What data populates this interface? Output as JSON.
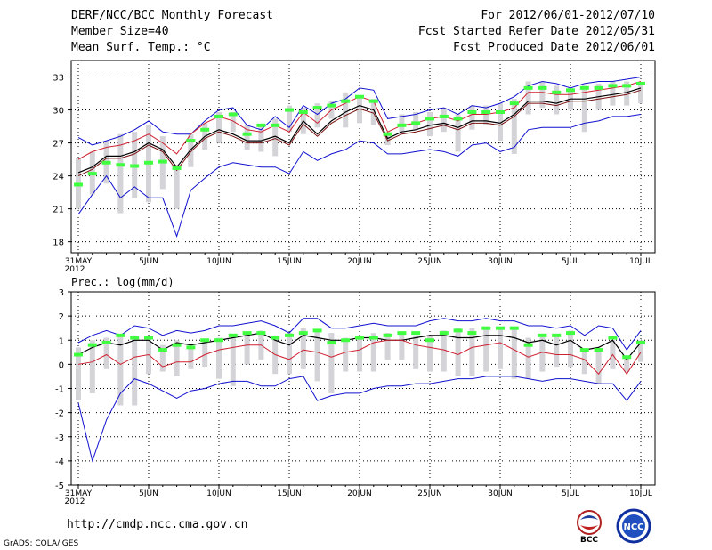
{
  "header": {
    "title": "DERF/NCC/BCC Monthly Forecast",
    "member_size": "Member Size=40",
    "variable": "Mean Surf. Temp.: °C",
    "forecast_period": "For 2012/06/01-2012/07/10",
    "refer_date": "Fcst Started Refer Date 2012/05/31",
    "produced_date": "Fcst Produced Date 2012/06/01"
  },
  "footer": {
    "url": "http://cmdp.ncc.cma.gov.cn",
    "grads": "GrADS: COLA/IGES",
    "logo_left": "BCC",
    "logo_right": "NCC"
  },
  "colors": {
    "box": "#d3d3d8",
    "ensemble_mean": "#40ff40",
    "envelope": "#1010d0",
    "climatology": "#000000",
    "percentile": "#d02030",
    "grid": "#000000"
  },
  "chart_data": [
    {
      "type": "line",
      "title": "Mean Surf. Temp.: °C",
      "x": [
        "31MAY 2012",
        "1",
        "2",
        "3",
        "4",
        "5JUN",
        "6",
        "7",
        "8",
        "9",
        "10JUN",
        "11",
        "12",
        "13",
        "14",
        "15JUN",
        "16",
        "17",
        "18",
        "19",
        "20JUN",
        "21",
        "22",
        "23",
        "24",
        "25JUN",
        "26",
        "27",
        "28",
        "29",
        "30JUN",
        "1",
        "2",
        "3",
        "4",
        "5JUL",
        "6",
        "7",
        "8",
        "9",
        "10JUL"
      ],
      "tick_labels": [
        {
          "day": 0,
          "label": "31MAY",
          "sub": "2012"
        },
        {
          "day": 5,
          "label": "5JUN"
        },
        {
          "day": 10,
          "label": "10JUN"
        },
        {
          "day": 15,
          "label": "15JUN"
        },
        {
          "day": 20,
          "label": "20JUN"
        },
        {
          "day": 25,
          "label": "25JUN"
        },
        {
          "day": 30,
          "label": "30JUN"
        },
        {
          "day": 35,
          "label": "5JUL"
        },
        {
          "day": 40,
          "label": "10JUL"
        }
      ],
      "ylim": [
        17,
        34.5
      ],
      "yticks": [
        18,
        21,
        24,
        27,
        30,
        33
      ],
      "grid": true,
      "series": [
        {
          "name": "Ensemble max (blue)",
          "values": [
            27.5,
            26.8,
            27.2,
            27.6,
            28.2,
            29.0,
            28.0,
            27.8,
            27.8,
            29.0,
            30.0,
            30.2,
            28.6,
            28.2,
            29.4,
            28.4,
            30.4,
            29.6,
            30.6,
            31.0,
            32.0,
            31.8,
            29.2,
            29.4,
            29.6,
            30.0,
            30.2,
            29.6,
            30.4,
            30.2,
            30.6,
            31.2,
            32.2,
            32.6,
            32.4,
            32.0,
            32.4,
            32.6,
            32.6,
            32.8,
            33.0
          ]
        },
        {
          "name": "Upper percentile (red)",
          "values": [
            25.5,
            26.2,
            26.6,
            26.8,
            27.2,
            27.8,
            27.0,
            26.0,
            27.8,
            28.8,
            29.4,
            29.0,
            28.2,
            28.0,
            28.6,
            28.0,
            29.8,
            28.8,
            30.0,
            30.6,
            31.2,
            30.8,
            28.0,
            28.6,
            28.8,
            29.2,
            29.4,
            29.0,
            29.6,
            29.6,
            29.8,
            30.2,
            31.6,
            31.6,
            31.4,
            31.4,
            31.6,
            31.8,
            32.0,
            32.2,
            32.6
          ]
        },
        {
          "name": "Climatology (black)",
          "values": [
            24.3,
            24.8,
            25.8,
            25.8,
            26.2,
            27.0,
            26.4,
            24.8,
            26.4,
            27.6,
            28.2,
            27.8,
            27.2,
            27.2,
            27.6,
            27.0,
            29.0,
            27.8,
            29.0,
            29.8,
            30.4,
            30.0,
            27.4,
            28.0,
            28.2,
            28.6,
            28.8,
            28.4,
            29.0,
            29.0,
            28.8,
            29.6,
            30.8,
            30.8,
            30.6,
            31.0,
            31.0,
            31.2,
            31.4,
            31.6,
            32.0
          ]
        },
        {
          "name": "Lower percentile (dark red)",
          "values": [
            24.0,
            24.6,
            25.6,
            25.6,
            26.0,
            26.8,
            26.2,
            24.5,
            26.2,
            27.4,
            28.0,
            27.6,
            27.0,
            27.0,
            27.4,
            26.8,
            28.7,
            27.6,
            28.8,
            29.5,
            30.1,
            29.7,
            27.2,
            27.8,
            28.0,
            28.3,
            28.6,
            28.2,
            28.8,
            28.8,
            28.6,
            29.4,
            30.6,
            30.6,
            30.4,
            30.8,
            30.8,
            31.0,
            31.2,
            31.4,
            31.8
          ]
        },
        {
          "name": "Ensemble min (blue)",
          "values": [
            20.5,
            22.3,
            24.0,
            22.0,
            23.0,
            22.0,
            22.0,
            18.5,
            22.7,
            23.8,
            24.8,
            25.2,
            25.0,
            24.8,
            24.8,
            24.2,
            26.2,
            25.4,
            26.0,
            26.4,
            27.2,
            27.0,
            26.0,
            26.0,
            26.2,
            26.4,
            26.2,
            25.8,
            26.8,
            27.0,
            26.2,
            26.6,
            28.2,
            28.4,
            28.4,
            28.4,
            28.8,
            29.0,
            29.4,
            29.4,
            29.6
          ]
        },
        {
          "name": "Ensemble mean (green)",
          "values": [
            23.2,
            24.2,
            25.2,
            25.0,
            24.9,
            25.2,
            25.3,
            24.7,
            27.2,
            28.2,
            29.4,
            29.6,
            27.8,
            28.6,
            28.6,
            30.0,
            29.8,
            30.2,
            30.4,
            30.8,
            31.2,
            30.8,
            27.8,
            28.6,
            28.8,
            29.2,
            29.4,
            29.2,
            29.8,
            29.8,
            29.8,
            30.6,
            32.0,
            32.0,
            31.6,
            31.8,
            32.0,
            32.0,
            32.2,
            32.2,
            32.4
          ]
        }
      ],
      "box_ranges": [
        [
          21.0,
          25.6
        ],
        [
          22.3,
          26.2
        ],
        [
          23.3,
          27.2
        ],
        [
          20.6,
          27.8
        ],
        [
          22.0,
          28.0
        ],
        [
          21.6,
          28.6
        ],
        [
          22.8,
          27.6
        ],
        [
          21.0,
          25.0
        ],
        [
          24.8,
          27.8
        ],
        [
          26.4,
          28.8
        ],
        [
          27.0,
          29.8
        ],
        [
          28.0,
          29.8
        ],
        [
          26.4,
          28.6
        ],
        [
          26.2,
          28.6
        ],
        [
          25.8,
          29.2
        ],
        [
          28.0,
          30.4
        ],
        [
          27.8,
          30.2
        ],
        [
          28.4,
          30.6
        ],
        [
          29.2,
          30.8
        ],
        [
          28.4,
          31.6
        ],
        [
          28.8,
          31.2
        ],
        [
          28.6,
          31.0
        ],
        [
          26.8,
          28.0
        ],
        [
          28.0,
          29.6
        ],
        [
          28.2,
          29.8
        ],
        [
          27.6,
          29.8
        ],
        [
          28.0,
          30.2
        ],
        [
          26.2,
          29.6
        ],
        [
          28.2,
          30.4
        ],
        [
          28.6,
          30.4
        ],
        [
          27.2,
          30.6
        ],
        [
          26.0,
          31.0
        ],
        [
          29.6,
          32.6
        ],
        [
          30.2,
          32.6
        ],
        [
          29.6,
          32.2
        ],
        [
          30.0,
          32.0
        ],
        [
          28.0,
          32.2
        ],
        [
          30.0,
          32.4
        ],
        [
          30.4,
          32.6
        ],
        [
          30.4,
          32.6
        ],
        [
          30.6,
          32.4
        ]
      ]
    },
    {
      "type": "line",
      "title": "Prec.: log(mm/d)",
      "x": [
        "31MAY 2012",
        "1",
        "2",
        "3",
        "4",
        "5JUN",
        "6",
        "7",
        "8",
        "9",
        "10JUN",
        "11",
        "12",
        "13",
        "14",
        "15JUN",
        "16",
        "17",
        "18",
        "19",
        "20JUN",
        "21",
        "22",
        "23",
        "24",
        "25JUN",
        "26",
        "27",
        "28",
        "29",
        "30JUN",
        "1",
        "2",
        "3",
        "4",
        "5JUL",
        "6",
        "7",
        "8",
        "9",
        "10JUL"
      ],
      "tick_labels": [
        {
          "day": 0,
          "label": "31MAY",
          "sub": "2012"
        },
        {
          "day": 5,
          "label": "5JUN"
        },
        {
          "day": 10,
          "label": "10JUN"
        },
        {
          "day": 15,
          "label": "15JUN"
        },
        {
          "day": 20,
          "label": "20JUN"
        },
        {
          "day": 25,
          "label": "25JUN"
        },
        {
          "day": 30,
          "label": "30JUN"
        },
        {
          "day": 35,
          "label": "5JUL"
        },
        {
          "day": 40,
          "label": "10JUL"
        }
      ],
      "ylim": [
        -5,
        3
      ],
      "yticks": [
        -5,
        -4,
        -3,
        -2,
        -1,
        0,
        1,
        2,
        3
      ],
      "grid": true,
      "series": [
        {
          "name": "Ensemble max (blue)",
          "values": [
            0.9,
            1.2,
            1.4,
            1.2,
            1.6,
            1.5,
            1.2,
            1.4,
            1.3,
            1.4,
            1.6,
            1.6,
            1.7,
            1.8,
            1.6,
            1.3,
            1.9,
            1.9,
            1.5,
            1.5,
            1.6,
            1.7,
            1.6,
            1.6,
            1.6,
            1.8,
            1.9,
            1.8,
            1.8,
            1.9,
            1.8,
            1.8,
            1.6,
            1.6,
            1.5,
            1.6,
            1.2,
            1.6,
            1.5,
            0.6,
            1.4
          ]
        },
        {
          "name": "Climatology (black)",
          "values": [
            0.4,
            0.7,
            0.9,
            0.8,
            1.0,
            1.0,
            0.6,
            0.9,
            0.8,
            0.9,
            1.0,
            1.1,
            1.2,
            1.3,
            1.0,
            0.8,
            1.2,
            1.1,
            1.0,
            1.0,
            1.1,
            1.1,
            1.0,
            1.0,
            1.1,
            1.2,
            1.2,
            1.1,
            1.1,
            1.2,
            1.2,
            1.1,
            0.9,
            1.0,
            0.8,
            1.0,
            0.6,
            0.7,
            1.0,
            0.2,
            0.9
          ]
        },
        {
          "name": "Percentile (red)",
          "values": [
            0.0,
            0.1,
            0.4,
            0.0,
            0.3,
            0.4,
            -0.1,
            0.1,
            0.1,
            0.4,
            0.6,
            0.7,
            0.8,
            0.8,
            0.4,
            0.2,
            0.6,
            0.5,
            0.3,
            0.5,
            0.6,
            0.9,
            1.0,
            1.0,
            0.8,
            0.7,
            0.6,
            0.4,
            0.7,
            0.8,
            0.9,
            0.6,
            0.3,
            0.5,
            0.4,
            0.4,
            0.2,
            -0.4,
            0.4,
            -0.4,
            0.5
          ]
        },
        {
          "name": "Ensemble min (blue)",
          "values": [
            -1.6,
            -4.0,
            -2.3,
            -1.2,
            -0.6,
            -0.8,
            -1.1,
            -1.4,
            -1.1,
            -1.0,
            -0.8,
            -0.7,
            -0.7,
            -0.9,
            -0.9,
            -0.6,
            -0.5,
            -1.5,
            -1.3,
            -1.2,
            -1.2,
            -1.0,
            -0.9,
            -0.9,
            -0.8,
            -0.8,
            -0.7,
            -0.6,
            -0.6,
            -0.5,
            -0.5,
            -0.5,
            -0.6,
            -0.7,
            -0.6,
            -0.6,
            -0.7,
            -0.8,
            -0.8,
            -1.5,
            -0.7
          ]
        },
        {
          "name": "Ensemble mean (green)",
          "values": [
            0.4,
            0.8,
            0.9,
            1.2,
            1.1,
            1.1,
            0.6,
            0.8,
            0.7,
            1.0,
            1.0,
            1.2,
            1.3,
            1.3,
            1.1,
            1.2,
            1.3,
            1.4,
            0.9,
            1.0,
            1.1,
            1.1,
            1.2,
            1.3,
            1.3,
            1.0,
            1.3,
            1.4,
            1.3,
            1.5,
            1.5,
            1.5,
            0.8,
            1.2,
            1.2,
            1.3,
            0.6,
            0.6,
            1.1,
            0.3,
            0.9
          ]
        }
      ],
      "box_ranges": [
        [
          -1.5,
          0.7
        ],
        [
          -1.2,
          1.0
        ],
        [
          -0.2,
          1.1
        ],
        [
          -1.7,
          1.2
        ],
        [
          -1.7,
          1.2
        ],
        [
          -0.4,
          1.1
        ],
        [
          -0.3,
          0.8
        ],
        [
          -0.5,
          1.0
        ],
        [
          -0.2,
          0.8
        ],
        [
          -0.1,
          1.0
        ],
        [
          -0.6,
          1.1
        ],
        [
          -0.9,
          1.1
        ],
        [
          0.0,
          1.3
        ],
        [
          0.2,
          1.4
        ],
        [
          -0.4,
          1.2
        ],
        [
          -0.4,
          1.3
        ],
        [
          -0.2,
          1.5
        ],
        [
          -0.7,
          1.4
        ],
        [
          -1.2,
          1.3
        ],
        [
          -0.3,
          1.1
        ],
        [
          -0.3,
          1.2
        ],
        [
          -0.3,
          1.3
        ],
        [
          0.2,
          1.3
        ],
        [
          0.2,
          1.3
        ],
        [
          -0.2,
          1.2
        ],
        [
          -0.3,
          1.2
        ],
        [
          -0.3,
          1.4
        ],
        [
          -0.5,
          1.5
        ],
        [
          -0.5,
          1.5
        ],
        [
          -0.3,
          1.5
        ],
        [
          -0.2,
          1.5
        ],
        [
          -0.6,
          1.5
        ],
        [
          -0.6,
          1.1
        ],
        [
          -0.3,
          1.2
        ],
        [
          -0.1,
          1.2
        ],
        [
          -0.1,
          1.4
        ],
        [
          -0.4,
          0.6
        ],
        [
          -0.8,
          0.6
        ],
        [
          -0.2,
          1.0
        ],
        [
          -0.3,
          0.3
        ],
        [
          0.1,
          1.0
        ]
      ]
    }
  ]
}
